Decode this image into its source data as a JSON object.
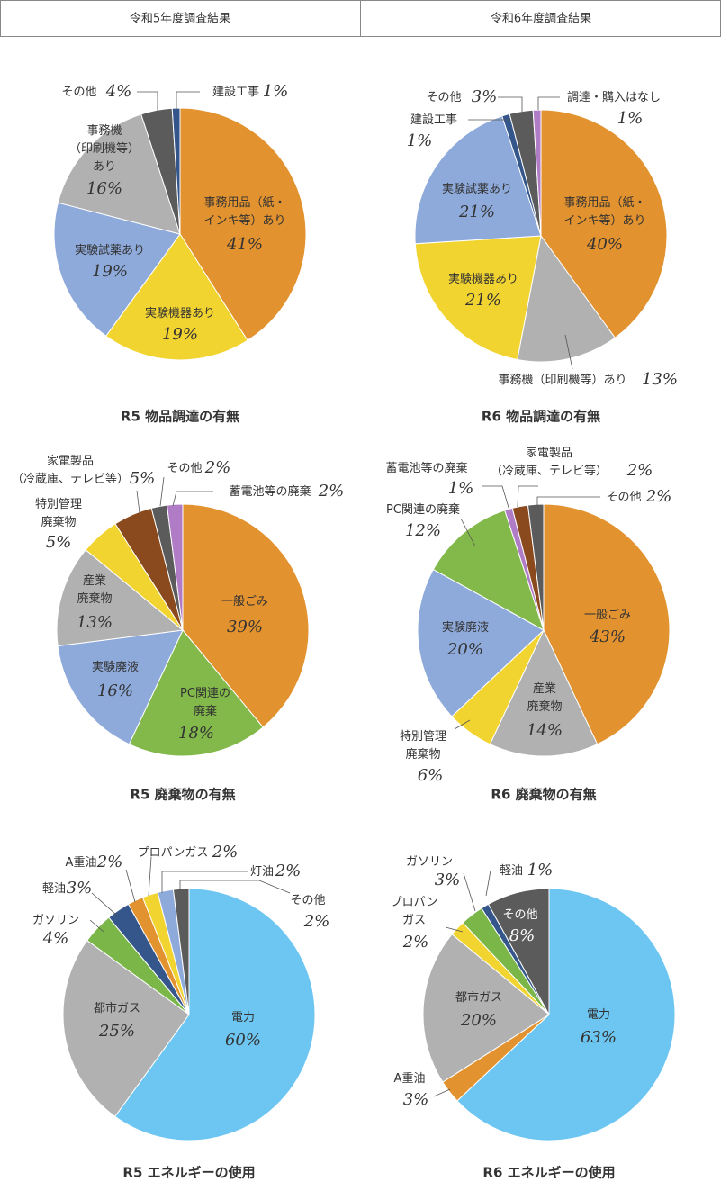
{
  "header": {
    "columns": [
      "令和5年度調査結果",
      "令和6年度調査結果"
    ]
  },
  "chart_data": [
    {
      "type": "pie",
      "title": "R5 物品調達の有無",
      "categories": [
        "事務用品（紙・\nインキ等）あり",
        "実験機器あり",
        "実験試薬あり",
        "事務機\n（印刷機等）\nあり",
        "その他",
        "建設工事"
      ],
      "values": [
        41,
        19,
        19,
        16,
        4,
        1
      ],
      "value_labels": [
        "41%",
        "19%",
        "19%",
        "16%",
        "4%",
        "1%"
      ],
      "colors": [
        "#e2922f",
        "#f2d431",
        "#8eaadb",
        "#b1b1b1",
        "#5b5b5b",
        "#34568b"
      ]
    },
    {
      "type": "pie",
      "title": "R6 物品調達の有無",
      "categories": [
        "事務用品（紙・\nインキ等）あり",
        "事務機（印刷機等）あり",
        "実験機器あり",
        "実験試薬あり",
        "建設工事",
        "その他",
        "調達・購入はなし"
      ],
      "values": [
        40,
        13,
        21,
        21,
        1,
        3,
        1
      ],
      "value_labels": [
        "40%",
        "13%",
        "21%",
        "21%",
        "1%",
        "3%",
        "1%"
      ],
      "colors": [
        "#e2922f",
        "#b1b1b1",
        "#f2d431",
        "#8eaadb",
        "#34568b",
        "#5b5b5b",
        "#b07cc6"
      ]
    },
    {
      "type": "pie",
      "title": "R5 廃棄物の有無",
      "categories": [
        "一般ごみ",
        "PC関連の\n廃棄",
        "実験廃液",
        "産業\n廃棄物",
        "特別管理\n廃棄物",
        "家電製品\n（冷蔵庫、テレビ等）",
        "その他",
        "蓄電池等の廃棄"
      ],
      "values": [
        39,
        18,
        16,
        13,
        5,
        5,
        2,
        2
      ],
      "value_labels": [
        "39%",
        "18%",
        "16%",
        "13%",
        "5%",
        "5%",
        "2%",
        "2%"
      ],
      "colors": [
        "#e2922f",
        "#82b94a",
        "#8eaadb",
        "#b1b1b1",
        "#f2d431",
        "#8a4a1d",
        "#5b5b5b",
        "#b07cc6"
      ]
    },
    {
      "type": "pie",
      "title": "R6 廃棄物の有無",
      "categories": [
        "一般ごみ",
        "産業\n廃棄物",
        "特別管理\n廃棄物",
        "実験廃液",
        "PC関連の廃棄",
        "蓄電池等の廃棄",
        "家電製品\n（冷蔵庫、テレビ等）",
        "その他"
      ],
      "values": [
        43,
        14,
        6,
        20,
        12,
        1,
        2,
        2
      ],
      "value_labels": [
        "43%",
        "14%",
        "6%",
        "20%",
        "12%",
        "1%",
        "2%",
        "2%"
      ],
      "colors": [
        "#e2922f",
        "#b1b1b1",
        "#f2d431",
        "#8eaadb",
        "#82b94a",
        "#b07cc6",
        "#8a4a1d",
        "#5b5b5b"
      ]
    },
    {
      "type": "pie",
      "title": "R5 エネルギーの使用",
      "categories": [
        "電力",
        "都市ガス",
        "ガソリン",
        "軽油",
        "A重油",
        "プロパンガス",
        "灯油",
        "その他"
      ],
      "values": [
        60,
        25,
        4,
        3,
        2,
        2,
        2,
        2
      ],
      "value_labels": [
        "60%",
        "25%",
        "4%",
        "3%",
        "2%",
        "2%",
        "2%",
        "2%"
      ],
      "colors": [
        "#6cc6f1",
        "#b1b1b1",
        "#7ab648",
        "#34568b",
        "#e2922f",
        "#f2d431",
        "#8eaadb",
        "#5b5b5b"
      ]
    },
    {
      "type": "pie",
      "title": "R6 エネルギーの使用",
      "categories": [
        "電力",
        "A重油",
        "都市ガス",
        "プロパン\nガス",
        "ガソリン",
        "軽油",
        "その他"
      ],
      "values": [
        63,
        3,
        20,
        2,
        3,
        1,
        8
      ],
      "value_labels": [
        "63%",
        "3%",
        "20%",
        "2%",
        "3%",
        "1%",
        "8%"
      ],
      "colors": [
        "#6cc6f1",
        "#e2922f",
        "#b1b1b1",
        "#f2d431",
        "#7ab648",
        "#34568b",
        "#5b5b5b"
      ]
    }
  ]
}
